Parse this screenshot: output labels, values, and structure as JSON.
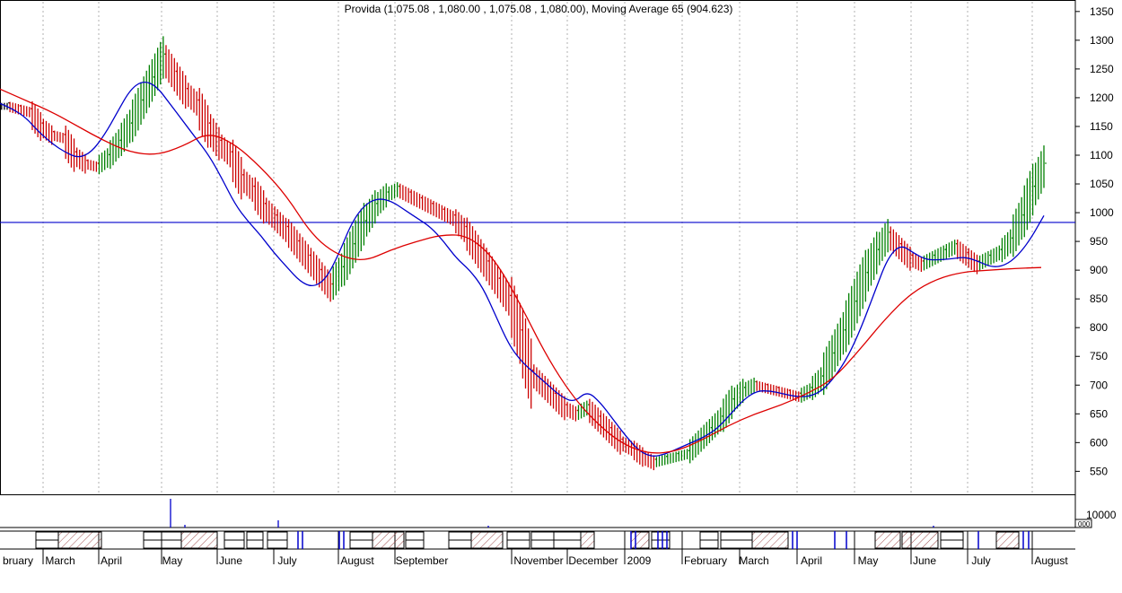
{
  "chart_data": {
    "type": "bar",
    "subtype": "ohlc-price-chart",
    "title": "Provida (1,075.08 , 1,080.00 , 1,075.08 , 1,080.00), Moving Average 65 (904.623)",
    "x_labels": [
      "bruary",
      "March",
      "April",
      "May",
      "June",
      "July",
      "August",
      "September",
      "November",
      "December",
      "2009",
      "February",
      "March",
      "April",
      "May",
      "June",
      "July",
      "August"
    ],
    "y_ticks": [
      550,
      600,
      650,
      700,
      750,
      800,
      850,
      900,
      950,
      1000,
      1050,
      1100,
      1150,
      1200,
      1250,
      1300,
      1350
    ],
    "ylim": [
      510,
      1370
    ],
    "volume_ticks": [
      "10000",
      "000"
    ],
    "horizontal_line": 983,
    "grid": true,
    "colors": {
      "up": "#008000",
      "down": "#cc0000",
      "neutral": "#000000",
      "ma_short": "#0000cc",
      "ma_long": "#dd0000",
      "hline": "#0000cc"
    },
    "series": [
      {
        "name": "Provida",
        "kind": "price-bars",
        "values": [
          1185,
          1180,
          1175,
          1150,
          1135,
          1130,
          1100,
          1085,
          1080,
          1095,
          1120,
          1150,
          1190,
          1230,
          1270,
          1240,
          1210,
          1190,
          1150,
          1120,
          1100,
          1060,
          1040,
          1010,
          990,
          970,
          945,
          920,
          895,
          870,
          900,
          940,
          980,
          1010,
          1030,
          1040,
          1030,
          1020,
          1010,
          1000,
          990,
          970,
          940,
          910,
          880,
          850,
          790,
          720,
          700,
          680,
          660,
          650,
          660,
          640,
          620,
          600,
          590,
          575,
          565,
          570,
          575,
          580,
          600,
          620,
          640,
          670,
          690,
          700,
          695,
          690,
          685,
          680,
          690,
          710,
          750,
          790,
          840,
          890,
          930,
          960,
          940,
          920,
          910,
          920,
          930,
          940,
          925,
          910,
          920,
          930,
          950,
          990,
          1040,
          1080
        ]
      },
      {
        "name": "short-ma",
        "values": [
          1190,
          1180,
          1165,
          1140,
          1120,
          1105,
          1095,
          1105,
          1135,
          1175,
          1215,
          1230,
          1220,
          1190,
          1160,
          1130,
          1100,
          1060,
          1015,
          985,
          960,
          930,
          905,
          880,
          870,
          885,
          930,
          985,
          1015,
          1025,
          1020,
          1005,
          990,
          975,
          950,
          920,
          900,
          870,
          820,
          770,
          740,
          720,
          700,
          680,
          670,
          690,
          670,
          640,
          610,
          585,
          575,
          580,
          590,
          600,
          610,
          625,
          650,
          675,
          690,
          690,
          685,
          680,
          680,
          690,
          715,
          750,
          800,
          860,
          920,
          945,
          930,
          918,
          918,
          920,
          923,
          915,
          905,
          908,
          925,
          955,
          995
        ]
      },
      {
        "name": "Moving Average 65",
        "values": [
          1215,
          1195,
          1175,
          1150,
          1125,
          1105,
          1100,
          1115,
          1140,
          1120,
          1080,
          1030,
          960,
          925,
          915,
          935,
          950,
          962,
          960,
          920,
          840,
          750,
          680,
          630,
          595,
          580,
          585,
          605,
          630,
          650,
          665,
          685,
          710,
          760,
          815,
          860,
          885,
          897,
          900,
          903,
          904.623
        ]
      }
    ]
  }
}
